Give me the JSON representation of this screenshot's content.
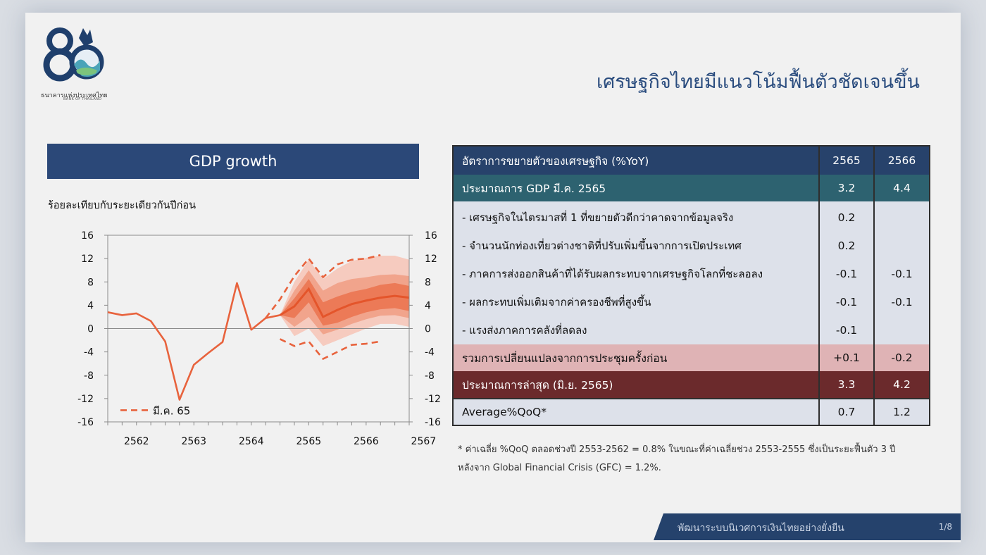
{
  "logo": {
    "text_th": "ธนาคารแห่งประเทศไทย",
    "text_en": "BANK OF THAILAND",
    "brand_color": "#1f3f6c"
  },
  "slide_title": "เศรษฐกิจไทยมีแนวโน้มฟื้นตัวชัดเจนขึ้น",
  "gdp_header": "GDP growth",
  "chart_data": {
    "type": "line",
    "ylabel": "ร้อยละเทียบกับระยะเดียวกันปีก่อน",
    "ylim": [
      -16,
      16
    ],
    "yticks": [
      "16",
      "12",
      "8",
      "4",
      "0",
      "-4",
      "-8",
      "-12",
      "-16"
    ],
    "yticks_right": [
      "16",
      "12",
      "8",
      "4",
      "0",
      "-4",
      "-8",
      "-12",
      "-16"
    ],
    "xlim": [
      2562,
      2567.25
    ],
    "xticks": [
      "2562",
      "2563",
      "2564",
      "2565",
      "2566",
      "2567"
    ],
    "grid": false,
    "legend": {
      "label": "มี.ค. 65",
      "position": "bottom-left"
    },
    "series": [
      {
        "style": "solid",
        "color": "#e8633d",
        "x": [
          2562,
          2562.25,
          2562.5,
          2562.75,
          2563,
          2563.25,
          2563.5,
          2563.75,
          2564,
          2564.25,
          2564.5,
          2564.75,
          2565
        ],
        "y": [
          2.8,
          2.3,
          2.6,
          1.3,
          -2.2,
          -12.2,
          -6.2,
          -4.2,
          -2.3,
          7.8,
          -0.2,
          1.8,
          2.3
        ]
      },
      {
        "name": "มี.ค. 65",
        "style": "dashed",
        "color": "#e8633d",
        "x_upper": [
          2564.75,
          2565,
          2565.25,
          2565.5,
          2565.75,
          2566,
          2566.25,
          2566.5,
          2566.75
        ],
        "y_upper": [
          1.8,
          5.0,
          9.0,
          12.0,
          8.8,
          11.0,
          11.8,
          12.0,
          12.6
        ],
        "x_lower": [
          2565,
          2565.25,
          2565.5,
          2565.75,
          2566,
          2566.25,
          2566.5,
          2566.75
        ],
        "y_lower": [
          -1.8,
          -3.0,
          -2.2,
          -5.2,
          -4.0,
          -2.8,
          -2.6,
          -2.2
        ]
      },
      {
        "style": "fan",
        "color": "#e8633d",
        "x": [
          2565,
          2565.25,
          2565.5,
          2565.75,
          2566,
          2566.25,
          2566.5,
          2566.75,
          2567,
          2567.25
        ],
        "median": [
          2.3,
          3.8,
          6.8,
          2.0,
          3.2,
          4.2,
          4.8,
          5.3,
          5.6,
          5.3
        ],
        "band_90": [
          [
            2.3,
            2.3
          ],
          [
            -1.3,
            8.0
          ],
          [
            0.0,
            11.8
          ],
          [
            -3.0,
            8.5
          ],
          [
            -2.0,
            10.3
          ],
          [
            -1.0,
            11.6
          ],
          [
            0.0,
            12.1
          ],
          [
            0.8,
            12.5
          ],
          [
            0.8,
            12.5
          ],
          [
            0.3,
            11.8
          ]
        ],
        "band_60": [
          [
            2.3,
            2.3
          ],
          [
            0.3,
            6.5
          ],
          [
            2.0,
            10.0
          ],
          [
            -1.0,
            6.5
          ],
          [
            -0.2,
            7.8
          ],
          [
            0.8,
            8.5
          ],
          [
            1.6,
            8.8
          ],
          [
            2.2,
            9.2
          ],
          [
            2.3,
            9.3
          ],
          [
            1.8,
            9.0
          ]
        ],
        "band_30": [
          [
            2.3,
            2.3
          ],
          [
            1.8,
            5.2
          ],
          [
            4.5,
            8.5
          ],
          [
            0.5,
            4.5
          ],
          [
            1.0,
            5.5
          ],
          [
            2.0,
            6.3
          ],
          [
            2.8,
            6.8
          ],
          [
            3.3,
            7.5
          ],
          [
            3.5,
            7.8
          ],
          [
            3.0,
            7.3
          ]
        ]
      }
    ]
  },
  "table": {
    "header": {
      "label": "อัตราการขยายตัวของเศรษฐกิจ (%YoY)",
      "col1": "2565",
      "col2": "2566"
    },
    "base": {
      "label": "ประมาณการ GDP มี.ค. 2565",
      "v1": "3.2",
      "v2": "4.4"
    },
    "items": [
      {
        "label": "- เศรษฐกิจในไตรมาสที่ 1 ที่ขยายตัวดีกว่าคาดจากข้อมูลจริง",
        "v1": "0.2",
        "v2": ""
      },
      {
        "label": "- จำนวนนักท่องเที่ยวต่างชาติที่ปรับเพิ่มขึ้นจากการเปิดประเทศ",
        "v1": "0.2",
        "v2": ""
      },
      {
        "label": "- ภาคการส่งออกสินค้าที่ได้รับผลกระทบจากเศรษฐกิจโลกที่ชะลอลง",
        "v1": "-0.1",
        "v2": "-0.1"
      },
      {
        "label": "- ผลกระทบเพิ่มเติมจากค่าครองชีพที่สูงขึ้น",
        "v1": "-0.1",
        "v2": "-0.1"
      },
      {
        "label": "- แรงส่งภาคการคลังที่ลดลง",
        "v1": "-0.1",
        "v2": ""
      }
    ],
    "sum": {
      "label": "รวมการเปลี่ยนแปลงจากการประชุมครั้งก่อน",
      "v1": "+0.1",
      "v2": "-0.2"
    },
    "latest": {
      "label": "ประมาณการล่าสุด (มิ.ย. 2565)",
      "v1": "3.3",
      "v2": "4.2"
    },
    "avg": {
      "label": "Average%QoQ*",
      "v1": "0.7",
      "v2": "1.2"
    },
    "colors": {
      "header": "#27426b",
      "base": "#2d6270",
      "sum": "#dfb3b5",
      "latest": "#6b2a2c",
      "positive": "#2e9b45",
      "negative": "#d9303a"
    }
  },
  "footnote": {
    "line1": "* ค่าเฉลี่ย %QoQ ตลอดช่วงปี 2553-2562 = 0.8% ในขณะที่ค่าเฉลี่ยช่วง 2553-2555 ซึ่งเป็นระยะฟื้นตัว 3 ปี",
    "line2": "หลังจาก Global Financial Crisis (GFC) = 1.2%."
  },
  "footer": {
    "text": "พัฒนาระบบนิเวศการเงินไทยอย่างยั่งยืน",
    "page": "1/8"
  }
}
